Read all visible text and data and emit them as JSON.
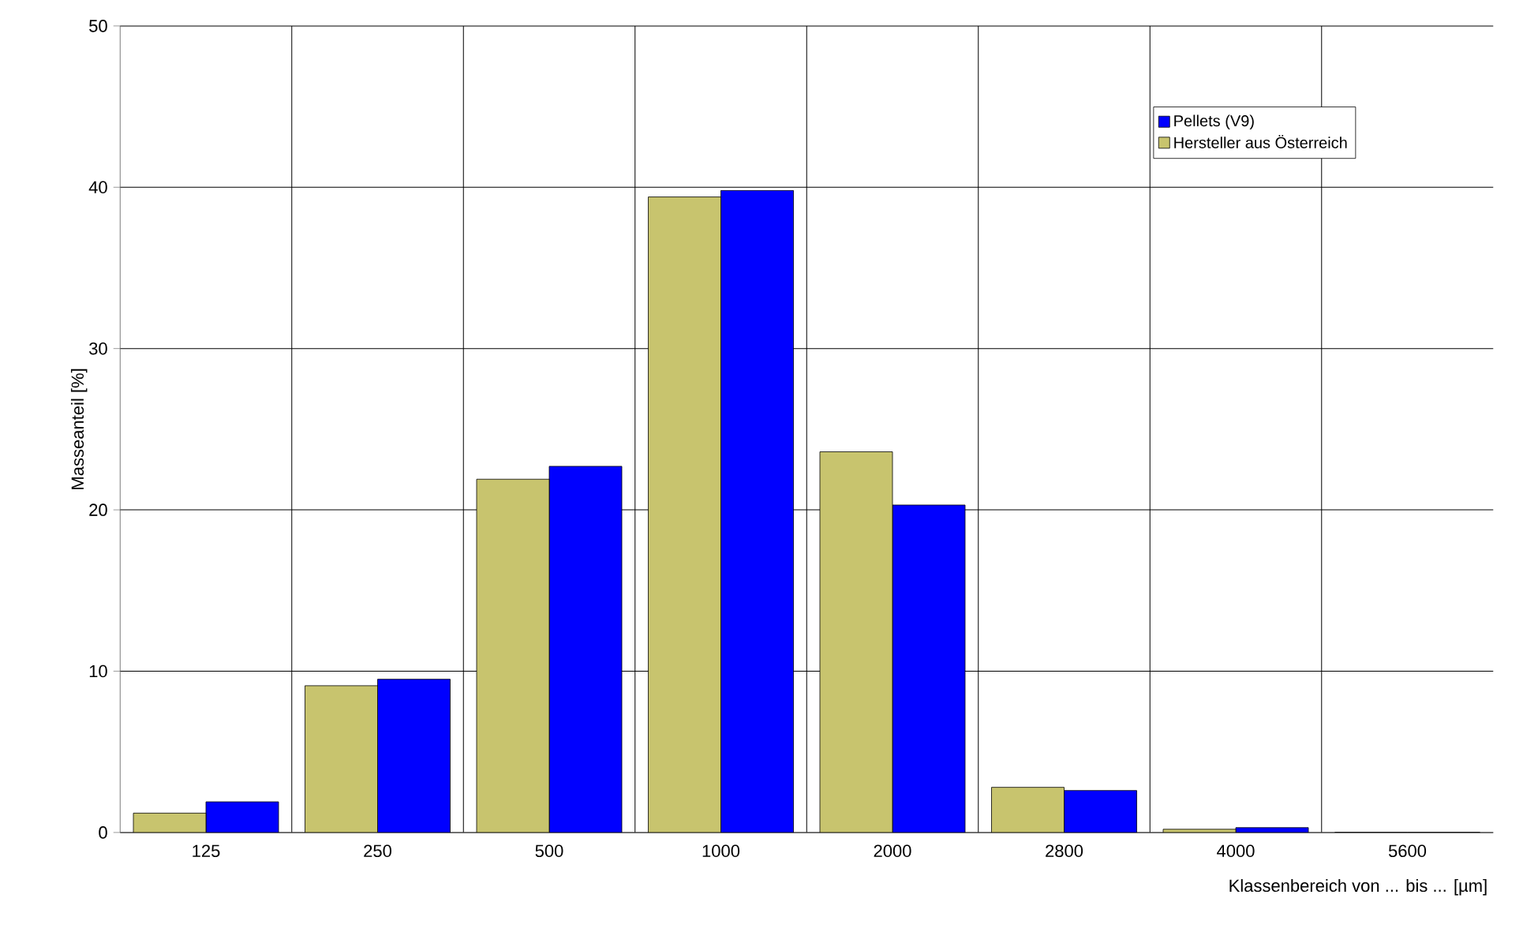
{
  "chart_data": {
    "type": "bar",
    "xlabel": "Klassenbereich von ... bis ... [µm]",
    "ylabel": "Masseanteil [%]",
    "categories": [
      "125",
      "250",
      "500",
      "1000",
      "2000",
      "2800",
      "4000",
      "5600"
    ],
    "series": [
      {
        "name": "Pellets (V9)",
        "color": "#0000ff",
        "values": [
          1.9,
          9.5,
          22.7,
          39.8,
          20.3,
          2.6,
          0.3,
          0
        ]
      },
      {
        "name": "Hersteller aus Österreich",
        "color": "#c8c46e",
        "values": [
          1.2,
          9.1,
          21.9,
          39.4,
          23.6,
          2.8,
          0.2,
          0
        ]
      }
    ],
    "ylim": [
      0,
      50
    ],
    "yticks": [
      0,
      10,
      20,
      30,
      40,
      50
    ],
    "grid": true,
    "legend": "top right"
  }
}
